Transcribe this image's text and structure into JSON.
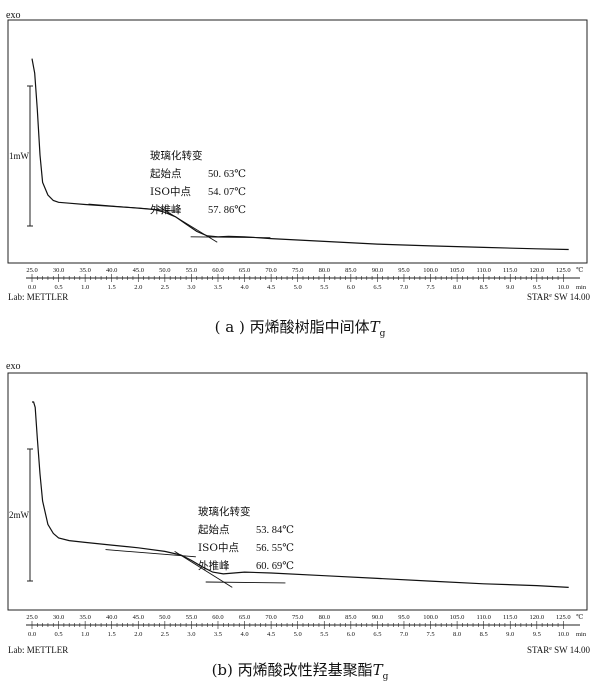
{
  "chart_data": [
    {
      "type": "line",
      "exo_label": "exo",
      "scale_label": "1mW",
      "temp_ticks": [
        "25.0",
        "30.0",
        "35.0",
        "40.0",
        "45.0",
        "50.0",
        "55.0",
        "60.0",
        "65.0",
        "70.0",
        "75.0",
        "80.0",
        "85.0",
        "90.0",
        "95.0",
        "100.0",
        "105.0",
        "110.0",
        "115.0",
        "120.0",
        "125.0"
      ],
      "temp_unit": "℃",
      "time_ticks": [
        "0.0",
        "0.5",
        "1.0",
        "1.5",
        "2.0",
        "2.5",
        "3.0",
        "3.5",
        "4.0",
        "4.5",
        "5.0",
        "5.5",
        "6.0",
        "6.5",
        "7.0",
        "7.5",
        "8.0",
        "8.5",
        "9.0",
        "9.5",
        "10.0"
      ],
      "time_unit": "min",
      "footer_left": "Lab:  METTLER",
      "footer_right_prefix": "STAR",
      "footer_right_sup": "e",
      "footer_right_suffix": "SW  14.00",
      "annotation": {
        "title": "玻璃化转变",
        "rows": [
          {
            "label": "起始点",
            "value": "50. 63℃"
          },
          {
            "label": "ISO中点",
            "value": "54. 07℃"
          },
          {
            "label": "外推峰",
            "value": "57. 86℃"
          }
        ]
      },
      "caption_prefix": "( a )  丙烯酸树脂中间体",
      "caption_sym": "T",
      "caption_sub": "g",
      "x": [
        25,
        25.5,
        26,
        26.5,
        27,
        28,
        29,
        30,
        32,
        35,
        40,
        45,
        48,
        50,
        52,
        54,
        56,
        58,
        60,
        62,
        65,
        70,
        80,
        90,
        100,
        110,
        120,
        126
      ],
      "y": [
        0.98,
        0.9,
        0.7,
        0.45,
        0.3,
        0.23,
        0.2,
        0.19,
        0.185,
        0.178,
        0.168,
        0.158,
        0.15,
        0.135,
        0.11,
        0.07,
        0.03,
        0.005,
        0.0,
        0.003,
        0.0,
        -0.01,
        -0.025,
        -0.04,
        -0.05,
        -0.058,
        -0.066,
        -0.07
      ]
    },
    {
      "type": "line",
      "exo_label": "exo",
      "scale_label": "2mW",
      "temp_ticks": [
        "25.0",
        "30.0",
        "35.0",
        "40.0",
        "45.0",
        "50.0",
        "55.0",
        "60.0",
        "65.0",
        "70.0",
        "75.0",
        "80.0",
        "85.0",
        "90.0",
        "95.0",
        "100.0",
        "105.0",
        "110.0",
        "115.0",
        "120.0",
        "125.0"
      ],
      "temp_unit": "℃",
      "time_ticks": [
        "0.0",
        "0.5",
        "1.0",
        "1.5",
        "2.0",
        "2.5",
        "3.0",
        "3.5",
        "4.0",
        "4.5",
        "5.0",
        "5.5",
        "6.0",
        "6.5",
        "7.0",
        "7.5",
        "8.0",
        "8.5",
        "9.0",
        "9.5",
        "10.0"
      ],
      "time_unit": "min",
      "footer_left": "Lab:  METTLER",
      "footer_right_prefix": "STAR",
      "footer_right_sup": "e",
      "footer_right_suffix": "SW  14.00",
      "annotation": {
        "title": "玻璃化转变",
        "rows": [
          {
            "label": "起始点",
            "value": "53. 84℃"
          },
          {
            "label": "ISO中点",
            "value": "56. 55℃"
          },
          {
            "label": "外推峰",
            "value": "60. 69℃"
          }
        ]
      },
      "caption_prefix": "(b)   丙烯酸改性羟基聚酯",
      "caption_sym": "T",
      "caption_sub": "g",
      "x": [
        25,
        25.3,
        25.6,
        26,
        26.5,
        27,
        28,
        29,
        30,
        32,
        35,
        40,
        45,
        50,
        53,
        55,
        57,
        59,
        61,
        63,
        65,
        70,
        80,
        90,
        100,
        110,
        120,
        126
      ],
      "y": [
        1.0,
        1.0,
        0.97,
        0.8,
        0.6,
        0.45,
        0.32,
        0.27,
        0.245,
        0.23,
        0.22,
        0.205,
        0.19,
        0.17,
        0.15,
        0.12,
        0.085,
        0.055,
        0.045,
        0.05,
        0.055,
        0.05,
        0.035,
        0.02,
        0.005,
        -0.01,
        -0.02,
        -0.03
      ]
    }
  ]
}
